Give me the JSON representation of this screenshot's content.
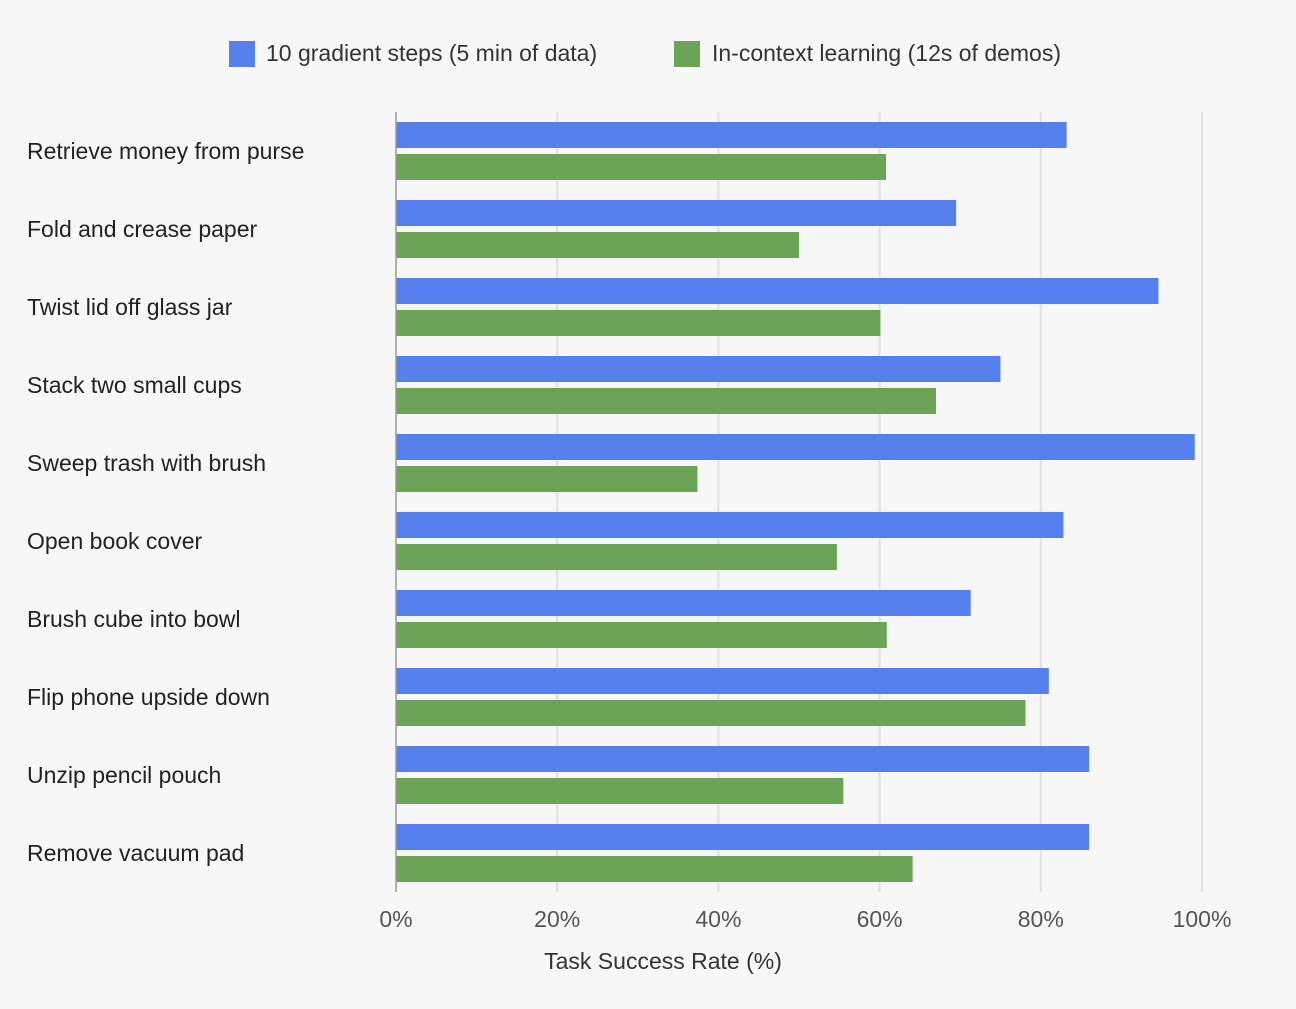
{
  "chart_data": {
    "type": "bar",
    "orientation": "horizontal",
    "categories": [
      "Retrieve money from purse",
      "Fold and crease paper",
      "Twist lid off glass jar",
      "Stack two small cups",
      "Sweep trash with brush",
      "Open book cover",
      "Brush cube into bowl",
      "Flip phone upside down",
      "Unzip pencil pouch",
      "Remove vacuum pad"
    ],
    "series": [
      {
        "name": "10 gradient steps (5 min of data)",
        "color": "#5680ee",
        "values": [
          83.2,
          69.5,
          94.6,
          75.0,
          99.1,
          82.8,
          71.3,
          81.0,
          86.0,
          86.0
        ]
      },
      {
        "name": "In-context learning (12s of demos)",
        "color": "#6ba456",
        "values": [
          60.8,
          50.0,
          60.1,
          67.0,
          37.4,
          54.7,
          60.9,
          78.1,
          55.5,
          64.1
        ]
      }
    ],
    "xlabel": "Task Success Rate (%)",
    "xlim": [
      0,
      100
    ],
    "xticks": [
      0,
      20,
      40,
      60,
      80,
      100
    ],
    "tick_suffix": "%",
    "grid": "vertical",
    "legend_position": "top-center"
  }
}
